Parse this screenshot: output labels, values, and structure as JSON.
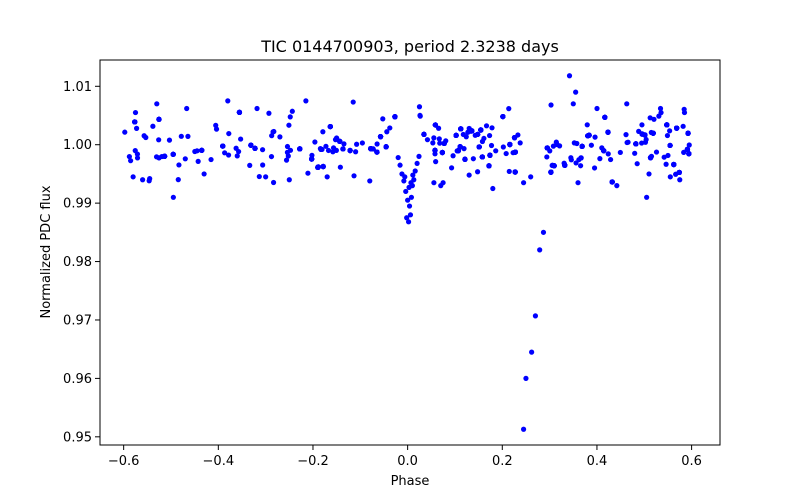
{
  "chart_data": {
    "type": "scatter",
    "title": "TIC 0144700903, period 2.3238 days",
    "xlabel": "Phase",
    "ylabel": "Normalized PDC flux",
    "xlim": [
      -0.65,
      0.66
    ],
    "ylim": [
      0.9486,
      1.0145
    ],
    "xticks": [
      -0.6,
      -0.4,
      -0.2,
      0.0,
      0.2,
      0.4,
      0.6
    ],
    "xtick_labels": [
      "−0.6",
      "−0.4",
      "−0.2",
      "0.0",
      "0.2",
      "0.4",
      "0.6"
    ],
    "yticks": [
      0.95,
      0.96,
      0.97,
      0.98,
      0.99,
      1.0,
      1.01
    ],
    "ytick_labels": [
      "0.95",
      "0.96",
      "0.97",
      "0.98",
      "0.99",
      "1.00",
      "1.01"
    ],
    "grid": false,
    "marker_color": "#0000ff",
    "points": [
      [
        0.245,
        0.9513
      ],
      [
        0.25,
        0.96
      ],
      [
        0.262,
        0.9645
      ],
      [
        0.27,
        0.9707
      ],
      [
        0.279,
        0.982
      ],
      [
        0.287,
        0.985
      ],
      [
        -0.002,
        0.9875
      ],
      [
        0.002,
        0.9868
      ],
      [
        0.006,
        0.988
      ],
      [
        0.0,
        0.9905
      ],
      [
        0.004,
        0.9895
      ],
      [
        0.008,
        0.991
      ],
      [
        -0.004,
        0.992
      ],
      [
        0.01,
        0.993
      ],
      [
        0.013,
        0.994
      ],
      [
        -0.008,
        0.9938
      ],
      [
        0.016,
        0.9955
      ],
      [
        -0.012,
        0.995
      ],
      [
        0.02,
        0.9968
      ],
      [
        -0.016,
        0.9965
      ],
      [
        0.024,
        0.998
      ],
      [
        -0.02,
        0.9978
      ],
      [
        0.003,
        0.9927
      ],
      [
        0.007,
        0.9935
      ],
      [
        -0.006,
        0.9945
      ],
      [
        0.011,
        0.9948
      ],
      [
        -0.495,
        0.991
      ],
      [
        0.505,
        0.991
      ],
      [
        0.342,
        1.0118
      ],
      [
        0.355,
        1.009
      ],
      [
        -0.38,
        1.0075
      ],
      [
        -0.215,
        1.0075
      ],
      [
        -0.115,
        1.0073
      ],
      [
        0.025,
        1.0065
      ],
      [
        0.463,
        1.007
      ],
      [
        0.303,
        1.0068
      ],
      [
        -0.53,
        1.007
      ],
      [
        0.35,
        1.007
      ],
      [
        0.585,
        1.0055
      ],
      [
        -0.575,
        1.0055
      ],
      [
        -0.58,
        0.9945
      ],
      [
        -0.56,
        0.994
      ],
      [
        -0.545,
        0.9942
      ],
      [
        0.575,
        0.994
      ],
      [
        0.555,
        0.9945
      ],
      [
        0.36,
        0.9935
      ],
      [
        0.442,
        0.993
      ],
      [
        -0.43,
        0.995
      ],
      [
        -0.17,
        0.9945
      ],
      [
        -0.08,
        0.9938
      ],
      [
        0.18,
        0.9925
      ],
      [
        0.245,
        0.9935
      ],
      [
        0.26,
        0.9945
      ],
      [
        0.51,
        0.995
      ],
      [
        -0.3,
        0.9945
      ],
      [
        -0.25,
        0.994
      ],
      [
        0.07,
        0.993
      ],
      [
        0.13,
        0.9948
      ]
    ],
    "noise_band": {
      "center": 1.0001,
      "sigma": 0.0028,
      "x_start": -0.598,
      "x_end": 0.598,
      "excluded_ranges": [
        [
          -0.024,
          0.026
        ],
        [
          0.24,
          0.29
        ]
      ],
      "count": 1000
    }
  }
}
